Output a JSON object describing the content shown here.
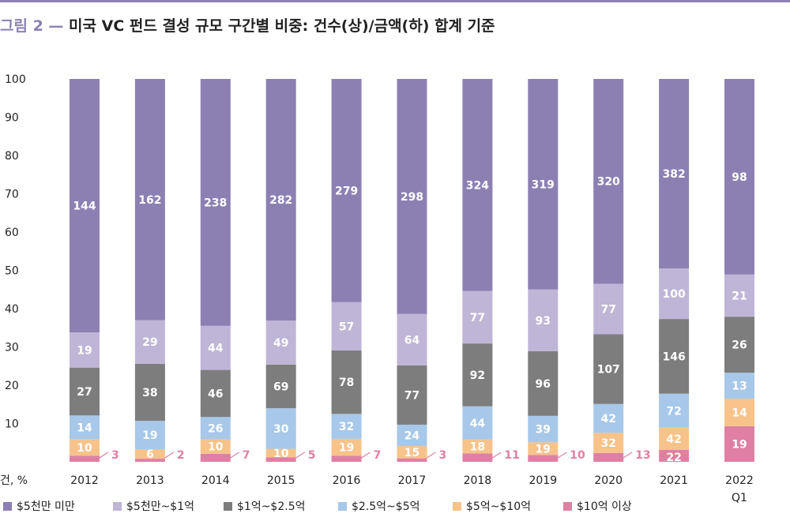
{
  "title": {
    "figure_label": "그림 2",
    "separator": "—",
    "text": "미국 VC 펀드 결성 규모 구간별 비중: 건수(상)/금액(하) 합계 기준"
  },
  "colors": {
    "under_50m": "#8c80b3",
    "50m_100m": "#bfb5d6",
    "100m_250m": "#7d7d7d",
    "250m_500m": "#a7c8e8",
    "500m_1b": "#f7c38a",
    "over_1b": "#e07fa4",
    "callout": "#e07fa4"
  },
  "chart_data": {
    "type": "bar",
    "stacked": true,
    "orientation": "vertical",
    "categories": [
      "2012",
      "2013",
      "2014",
      "2015",
      "2016",
      "2017",
      "2018",
      "2019",
      "2020",
      "2021",
      "2022\nQ1"
    ],
    "y_unit_label": "건, %",
    "ylim": [
      0,
      100
    ],
    "yticks": [
      10,
      20,
      30,
      40,
      50,
      60,
      70,
      80,
      90,
      100
    ],
    "grid": false,
    "legend_position": "bottom-left",
    "series": [
      {
        "key": "over_1b",
        "name": "$10억 이상",
        "labels": [
          3,
          2,
          7,
          5,
          7,
          3,
          11,
          10,
          13,
          22,
          19
        ],
        "percent": [
          1.6,
          0.8,
          2.1,
          1.2,
          1.6,
          0.9,
          2.2,
          1.8,
          2.3,
          3.1,
          9.3
        ],
        "label_style": [
          "callout",
          "callout",
          "callout",
          "callout",
          "callout",
          "callout",
          "callout",
          "callout",
          "callout",
          "inside-pink",
          "inside"
        ]
      },
      {
        "key": "500m_1b",
        "name": "$5억~$10억",
        "labels": [
          10,
          6,
          10,
          10,
          19,
          15,
          18,
          19,
          32,
          42,
          14
        ],
        "percent": [
          4.3,
          2.5,
          3.8,
          2.2,
          4.4,
          3.2,
          3.6,
          3.3,
          5.3,
          5.8,
          7.2
        ]
      },
      {
        "key": "250m_500m",
        "name": "$2.5억~$5억",
        "labels": [
          14,
          19,
          26,
          30,
          32,
          24,
          44,
          39,
          42,
          72,
          13
        ],
        "percent": [
          6.2,
          7.4,
          5.8,
          10.6,
          6.5,
          5.6,
          8.7,
          6.9,
          7.5,
          8.9,
          6.8
        ]
      },
      {
        "key": "100m_250m",
        "name": "$1억~$2.5억",
        "labels": [
          27,
          38,
          46,
          69,
          78,
          77,
          92,
          96,
          107,
          146,
          26
        ],
        "percent": [
          12.5,
          14.9,
          12.3,
          11.4,
          16.6,
          15.5,
          16.4,
          16.9,
          18.2,
          19.5,
          14.6
        ]
      },
      {
        "key": "50m_100m",
        "name": "$5천만~$1억",
        "labels": [
          19,
          29,
          44,
          49,
          57,
          64,
          77,
          93,
          77,
          100,
          21
        ],
        "percent": [
          9.2,
          11.4,
          11.5,
          11.5,
          12.6,
          13.4,
          13.7,
          16.1,
          13.2,
          13.2,
          11.0
        ]
      },
      {
        "key": "under_50m",
        "name": "$5천만 미만",
        "labels": [
          144,
          162,
          238,
          282,
          279,
          298,
          324,
          319,
          320,
          382,
          98
        ],
        "percent": [
          66.2,
          63.0,
          64.5,
          63.1,
          58.3,
          61.4,
          55.4,
          55.0,
          53.5,
          49.5,
          51.1
        ]
      }
    ],
    "legend_order": [
      "under_50m",
      "50m_100m",
      "100m_250m",
      "250m_500m",
      "500m_1b",
      "over_1b"
    ]
  }
}
